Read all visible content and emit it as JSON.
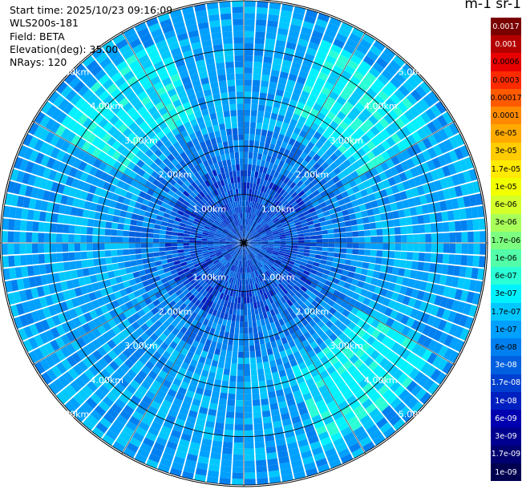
{
  "header": {
    "start_time": "Start time: 2025/10/23 09:16:09",
    "instrument": "WLS200s-181",
    "field": "Field: BETA",
    "elevation": "Elevation(deg): 35.00",
    "nrays": "NRays: 120"
  },
  "colorbar": {
    "title": "m-1 sr-1",
    "labels": [
      "0.0017",
      "0.001",
      "0.0006",
      "0.0003",
      "0.00017",
      "0.0001",
      "6e-05",
      "3e-05",
      "1.7e-05",
      "1e-05",
      "6e-06",
      "3e-06",
      "1.7e-06",
      "1e-06",
      "6e-07",
      "3e-07",
      "1.7e-07",
      "1e-07",
      "6e-08",
      "3e-08",
      "1.7e-08",
      "1e-08",
      "6e-09",
      "3e-09",
      "1.7e-09",
      "1e-09"
    ],
    "colors": [
      "#7a0000",
      "#b50000",
      "#e80000",
      "#ff2a00",
      "#ff5a00",
      "#ff8a00",
      "#ffaa00",
      "#ffcc00",
      "#ffea00",
      "#f2ff00",
      "#d4ff2a",
      "#a8ff5a",
      "#7dff80",
      "#52ffa8",
      "#2affd6",
      "#00f2ff",
      "#00c8ff",
      "#00a0ff",
      "#0080f0",
      "#0060e0",
      "#0040d0",
      "#0020c0",
      "#0000b0",
      "#000090",
      "#000070",
      "#000050"
    ]
  },
  "chart_data": {
    "type": "heatmap",
    "projection": "polar PPI",
    "field": "BETA",
    "nrays": 120,
    "elevation_deg": 35.0,
    "range_ring_labels": [
      "1.00km",
      "2.00km",
      "3.00km",
      "4.00km",
      "5.00km"
    ],
    "range_rings_km": [
      1,
      2,
      3,
      4,
      5
    ],
    "max_range_km": 5.0
  }
}
